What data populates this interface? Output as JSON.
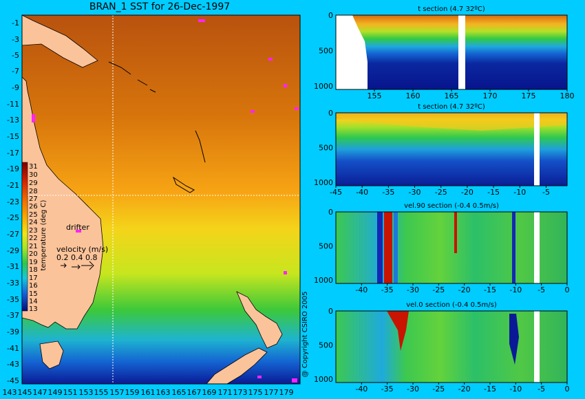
{
  "map": {
    "title": "BRAN_1 SST for 26-Dec-1997",
    "lon_ticks": [
      "143",
      "145",
      "147",
      "149",
      "151",
      "153",
      "155",
      "157",
      "159",
      "161",
      "163",
      "165",
      "167",
      "169",
      "171",
      "173",
      "175",
      "177",
      "179"
    ],
    "lat_ticks": [
      "-1",
      "-3",
      "-5",
      "-7",
      "-9",
      "-11",
      "-13",
      "-15",
      "-17",
      "-19",
      "-21",
      "-23",
      "-25",
      "-27",
      "-29",
      "-31",
      "-33",
      "-35",
      "-37",
      "-39",
      "-41",
      "-43",
      "-45"
    ],
    "colorbar_label": "temperature (deg C)",
    "colorbar_ticks": [
      "31",
      "30",
      "29",
      "28",
      "27",
      "26",
      "25",
      "24",
      "23",
      "22",
      "21",
      "20",
      "19",
      "18",
      "17",
      "16",
      "15",
      "14",
      "13"
    ],
    "drifter_label": "drifter",
    "velocity_label": "velocity (m/s)",
    "velocity_scale": "0.2 0.4 0.8",
    "copyright": "@ Copyright CSIRO 2005",
    "crosshair": {
      "lon": 155,
      "lat": -23
    }
  },
  "colors": {
    "background": "#00ccff",
    "land": "#fbc39a",
    "missing": "#ffffff"
  },
  "chart_data": [
    {
      "type": "heatmap",
      "title": "t section (4.7      32ºC)",
      "x_ticks": [
        "155",
        "160",
        "165",
        "170",
        "175",
        "180"
      ],
      "xlim": [
        150,
        180
      ],
      "y_ticks": [
        "0",
        "500",
        "1000"
      ],
      "ylim": [
        0,
        1050
      ]
    },
    {
      "type": "heatmap",
      "title": "t section (4.7      32ºC)",
      "x_ticks": [
        "-45",
        "-40",
        "-35",
        "-30",
        "-25",
        "-20",
        "-15",
        "-10",
        "-5"
      ],
      "xlim": [
        -45,
        -1
      ],
      "y_ticks": [
        "0",
        "500",
        "1000"
      ],
      "ylim": [
        0,
        1050
      ]
    },
    {
      "type": "heatmap",
      "title": "vel.90 section (-0.4      0.5m/s)",
      "x_ticks": [
        "-40",
        "-35",
        "-30",
        "-25",
        "-20",
        "-15",
        "-10",
        "-5",
        "0"
      ],
      "xlim": [
        -45,
        0
      ],
      "y_ticks": [
        "0",
        "500",
        "1000"
      ],
      "ylim": [
        0,
        1050
      ]
    },
    {
      "type": "heatmap",
      "title": "vel.0 section (-0.4      0.5m/s)",
      "x_ticks": [
        "-40",
        "-35",
        "-30",
        "-25",
        "-20",
        "-15",
        "-10",
        "-5",
        "0"
      ],
      "xlim": [
        -45,
        0
      ],
      "y_ticks": [
        "0",
        "500",
        "1000"
      ],
      "ylim": [
        0,
        1050
      ]
    }
  ]
}
